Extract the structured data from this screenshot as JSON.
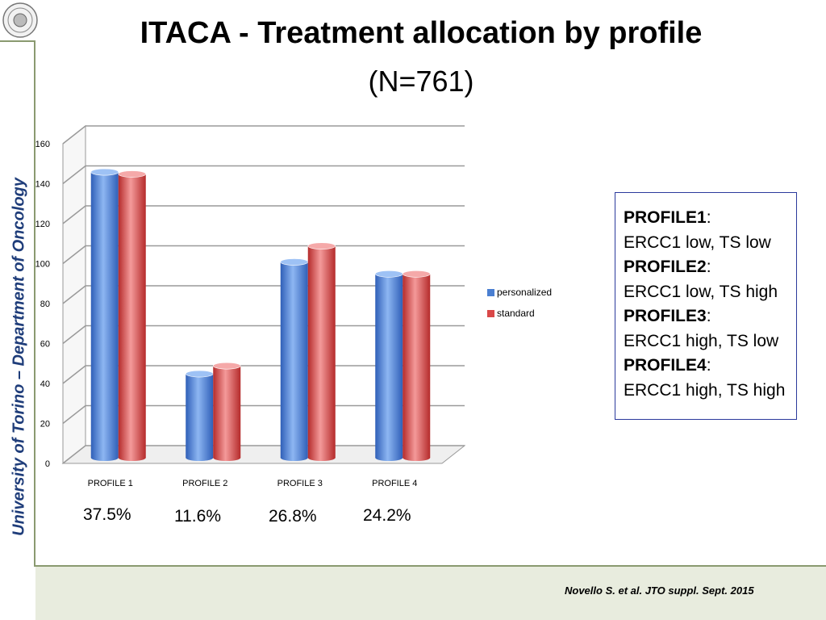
{
  "title": "ITACA - Treatment allocation by profile",
  "subtitle": "(N=761)",
  "sidebar_label": "University of Torino – Department of Oncology",
  "citation": "Novello S. et al. JTO suppl. Sept. 2015",
  "chart_data": {
    "type": "bar",
    "categories": [
      "PROFILE 1",
      "PROFILE 2",
      "PROFILE 3",
      "PROFILE 4"
    ],
    "series": [
      {
        "name": "personalized",
        "values": [
          143,
          42,
          98,
          92
        ],
        "color": "#4a7fd1"
      },
      {
        "name": "standard",
        "values": [
          142,
          46,
          106,
          92
        ],
        "color": "#d94848"
      }
    ],
    "ylim": [
      0,
      160
    ],
    "yticks": [
      0,
      20,
      40,
      60,
      80,
      100,
      120,
      140,
      160
    ],
    "grid": true,
    "legend_position": "right",
    "percent_labels": [
      "37.5%",
      "11.6%",
      "26.8%",
      "24.2%"
    ]
  },
  "profile_legend": [
    {
      "name": "PROFILE1",
      "desc": "ERCC1 low, TS low"
    },
    {
      "name": "PROFILE2",
      "desc": "ERCC1 low, TS high"
    },
    {
      "name": "PROFILE3",
      "desc": "ERCC1 high, TS low"
    },
    {
      "name": "PROFILE4",
      "desc": "ERCC1 high, TS high"
    }
  ]
}
